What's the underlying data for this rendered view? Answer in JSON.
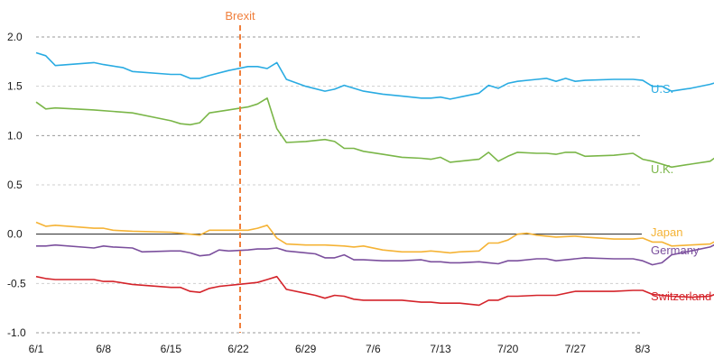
{
  "chart_data": {
    "type": "line",
    "title": "",
    "xlabel": "",
    "ylabel": "",
    "ylim": [
      -1.0,
      2.0
    ],
    "y_ticks": [
      2.0,
      1.5,
      1.0,
      0.5,
      0.0,
      -0.5,
      -1.0
    ],
    "y_tick_labels": [
      "2.0",
      "1.5",
      "1.0",
      "0.5",
      "0.0",
      "-0.5",
      "-1.0"
    ],
    "x_ticks": [
      "6/1",
      "6/8",
      "6/15",
      "6/22",
      "6/29",
      "7/6",
      "7/13",
      "7/20",
      "7/27",
      "8/3"
    ],
    "grid": "horizontal dashed",
    "legend": "labels at right end of each series",
    "annotation": {
      "label": "Brexit",
      "x": 21,
      "color": "#f07f3c"
    },
    "series": [
      {
        "name": "U.S.",
        "color": "#29abe2",
        "points": [
          [
            0,
            1.84
          ],
          [
            1,
            1.81
          ],
          [
            2,
            1.71
          ],
          [
            6,
            1.74
          ],
          [
            7,
            1.72
          ],
          [
            9,
            1.69
          ],
          [
            10,
            1.65
          ],
          [
            14,
            1.62
          ],
          [
            15,
            1.62
          ],
          [
            16,
            1.58
          ],
          [
            17,
            1.58
          ],
          [
            18,
            1.61
          ],
          [
            20,
            1.66
          ],
          [
            22,
            1.7
          ],
          [
            23,
            1.7
          ],
          [
            24,
            1.68
          ],
          [
            25,
            1.74
          ],
          [
            26,
            1.57
          ],
          [
            28,
            1.5
          ],
          [
            30,
            1.45
          ],
          [
            31,
            1.47
          ],
          [
            32,
            1.51
          ],
          [
            33,
            1.48
          ],
          [
            34,
            1.45
          ],
          [
            36,
            1.42
          ],
          [
            38,
            1.4
          ],
          [
            40,
            1.38
          ],
          [
            41,
            1.38
          ],
          [
            42,
            1.39
          ],
          [
            43,
            1.37
          ],
          [
            44,
            1.39
          ],
          [
            46,
            1.43
          ],
          [
            47,
            1.51
          ],
          [
            48,
            1.48
          ],
          [
            49,
            1.53
          ],
          [
            50,
            1.55
          ],
          [
            52,
            1.57
          ],
          [
            53,
            1.58
          ],
          [
            54,
            1.55
          ],
          [
            55,
            1.58
          ],
          [
            56,
            1.55
          ],
          [
            57,
            1.56
          ],
          [
            60,
            1.57
          ],
          [
            62,
            1.57
          ],
          [
            63,
            1.56
          ],
          [
            64,
            1.5
          ],
          [
            65,
            1.5
          ],
          [
            66,
            1.45
          ],
          [
            68,
            1.48
          ],
          [
            70,
            1.52
          ],
          [
            71,
            1.55
          ],
          [
            72,
            1.54
          ],
          [
            73,
            1.5
          ]
        ]
      },
      {
        "name": "U.K.",
        "color": "#7ab648",
        "points": [
          [
            0,
            1.34
          ],
          [
            1,
            1.27
          ],
          [
            2,
            1.28
          ],
          [
            6,
            1.26
          ],
          [
            10,
            1.23
          ],
          [
            14,
            1.15
          ],
          [
            15,
            1.12
          ],
          [
            16,
            1.11
          ],
          [
            17,
            1.13
          ],
          [
            18,
            1.23
          ],
          [
            20,
            1.26
          ],
          [
            22,
            1.29
          ],
          [
            23,
            1.32
          ],
          [
            24,
            1.38
          ],
          [
            25,
            1.07
          ],
          [
            26,
            0.93
          ],
          [
            28,
            0.94
          ],
          [
            30,
            0.96
          ],
          [
            31,
            0.94
          ],
          [
            32,
            0.87
          ],
          [
            33,
            0.87
          ],
          [
            34,
            0.84
          ],
          [
            36,
            0.81
          ],
          [
            38,
            0.78
          ],
          [
            40,
            0.77
          ],
          [
            41,
            0.76
          ],
          [
            42,
            0.78
          ],
          [
            43,
            0.73
          ],
          [
            44,
            0.74
          ],
          [
            46,
            0.76
          ],
          [
            47,
            0.83
          ],
          [
            48,
            0.74
          ],
          [
            49,
            0.79
          ],
          [
            50,
            0.83
          ],
          [
            52,
            0.82
          ],
          [
            53,
            0.82
          ],
          [
            54,
            0.81
          ],
          [
            55,
            0.83
          ],
          [
            56,
            0.83
          ],
          [
            57,
            0.79
          ],
          [
            60,
            0.8
          ],
          [
            62,
            0.82
          ],
          [
            63,
            0.76
          ],
          [
            64,
            0.74
          ],
          [
            65,
            0.71
          ],
          [
            66,
            0.68
          ],
          [
            68,
            0.71
          ],
          [
            70,
            0.74
          ],
          [
            71,
            0.81
          ],
          [
            72,
            0.8
          ],
          [
            73,
            0.64
          ]
        ]
      },
      {
        "name": "Japan",
        "color": "#f5b335",
        "points": [
          [
            0,
            0.12
          ],
          [
            1,
            0.08
          ],
          [
            2,
            0.09
          ],
          [
            6,
            0.06
          ],
          [
            7,
            0.06
          ],
          [
            8,
            0.04
          ],
          [
            10,
            0.03
          ],
          [
            14,
            0.02
          ],
          [
            15,
            0.01
          ],
          [
            16,
            0.0
          ],
          [
            17,
            -0.01
          ],
          [
            18,
            0.04
          ],
          [
            20,
            0.04
          ],
          [
            22,
            0.04
          ],
          [
            23,
            0.06
          ],
          [
            24,
            0.09
          ],
          [
            25,
            -0.04
          ],
          [
            26,
            -0.1
          ],
          [
            28,
            -0.11
          ],
          [
            30,
            -0.11
          ],
          [
            32,
            -0.12
          ],
          [
            33,
            -0.13
          ],
          [
            34,
            -0.12
          ],
          [
            36,
            -0.16
          ],
          [
            38,
            -0.18
          ],
          [
            40,
            -0.18
          ],
          [
            41,
            -0.17
          ],
          [
            42,
            -0.18
          ],
          [
            43,
            -0.19
          ],
          [
            44,
            -0.18
          ],
          [
            46,
            -0.17
          ],
          [
            47,
            -0.09
          ],
          [
            48,
            -0.09
          ],
          [
            49,
            -0.06
          ],
          [
            50,
            0.0
          ],
          [
            51,
            0.01
          ],
          [
            52,
            -0.01
          ],
          [
            54,
            -0.03
          ],
          [
            56,
            -0.02
          ],
          [
            57,
            -0.03
          ],
          [
            60,
            -0.05
          ],
          [
            62,
            -0.05
          ],
          [
            63,
            -0.04
          ],
          [
            64,
            -0.08
          ],
          [
            65,
            -0.08
          ],
          [
            66,
            -0.12
          ],
          [
            68,
            -0.11
          ],
          [
            70,
            -0.1
          ],
          [
            71,
            -0.05
          ],
          [
            72,
            -0.05
          ],
          [
            73,
            -0.08
          ]
        ]
      },
      {
        "name": "Germany",
        "color": "#7b4f9d",
        "points": [
          [
            0,
            -0.12
          ],
          [
            1,
            -0.12
          ],
          [
            2,
            -0.11
          ],
          [
            6,
            -0.14
          ],
          [
            7,
            -0.12
          ],
          [
            8,
            -0.13
          ],
          [
            10,
            -0.14
          ],
          [
            11,
            -0.18
          ],
          [
            14,
            -0.17
          ],
          [
            15,
            -0.17
          ],
          [
            16,
            -0.19
          ],
          [
            17,
            -0.22
          ],
          [
            18,
            -0.21
          ],
          [
            19,
            -0.16
          ],
          [
            20,
            -0.17
          ],
          [
            22,
            -0.16
          ],
          [
            23,
            -0.15
          ],
          [
            24,
            -0.15
          ],
          [
            25,
            -0.14
          ],
          [
            26,
            -0.17
          ],
          [
            28,
            -0.19
          ],
          [
            29,
            -0.2
          ],
          [
            30,
            -0.24
          ],
          [
            31,
            -0.24
          ],
          [
            32,
            -0.21
          ],
          [
            33,
            -0.26
          ],
          [
            34,
            -0.26
          ],
          [
            36,
            -0.27
          ],
          [
            38,
            -0.27
          ],
          [
            40,
            -0.26
          ],
          [
            41,
            -0.28
          ],
          [
            42,
            -0.28
          ],
          [
            43,
            -0.29
          ],
          [
            44,
            -0.29
          ],
          [
            46,
            -0.28
          ],
          [
            47,
            -0.29
          ],
          [
            48,
            -0.3
          ],
          [
            49,
            -0.27
          ],
          [
            50,
            -0.27
          ],
          [
            52,
            -0.25
          ],
          [
            53,
            -0.25
          ],
          [
            54,
            -0.27
          ],
          [
            56,
            -0.25
          ],
          [
            57,
            -0.24
          ],
          [
            60,
            -0.25
          ],
          [
            62,
            -0.25
          ],
          [
            63,
            -0.27
          ],
          [
            64,
            -0.31
          ],
          [
            65,
            -0.29
          ],
          [
            66,
            -0.21
          ],
          [
            68,
            -0.17
          ],
          [
            70,
            -0.13
          ],
          [
            71,
            -0.08
          ],
          [
            72,
            -0.1
          ],
          [
            73,
            -0.09
          ]
        ]
      },
      {
        "name": "Switzerland",
        "color": "#d4232a",
        "points": [
          [
            0,
            -0.43
          ],
          [
            1,
            -0.45
          ],
          [
            2,
            -0.46
          ],
          [
            6,
            -0.46
          ],
          [
            7,
            -0.48
          ],
          [
            8,
            -0.48
          ],
          [
            10,
            -0.51
          ],
          [
            14,
            -0.54
          ],
          [
            15,
            -0.54
          ],
          [
            16,
            -0.58
          ],
          [
            17,
            -0.59
          ],
          [
            18,
            -0.55
          ],
          [
            19,
            -0.53
          ],
          [
            20,
            -0.52
          ],
          [
            22,
            -0.5
          ],
          [
            23,
            -0.49
          ],
          [
            24,
            -0.46
          ],
          [
            25,
            -0.43
          ],
          [
            26,
            -0.56
          ],
          [
            28,
            -0.6
          ],
          [
            29,
            -0.62
          ],
          [
            30,
            -0.65
          ],
          [
            31,
            -0.62
          ],
          [
            32,
            -0.63
          ],
          [
            33,
            -0.66
          ],
          [
            34,
            -0.67
          ],
          [
            36,
            -0.67
          ],
          [
            38,
            -0.67
          ],
          [
            40,
            -0.69
          ],
          [
            41,
            -0.69
          ],
          [
            42,
            -0.7
          ],
          [
            43,
            -0.7
          ],
          [
            44,
            -0.7
          ],
          [
            46,
            -0.72
          ],
          [
            47,
            -0.67
          ],
          [
            48,
            -0.67
          ],
          [
            49,
            -0.63
          ],
          [
            50,
            -0.63
          ],
          [
            52,
            -0.62
          ],
          [
            53,
            -0.62
          ],
          [
            54,
            -0.62
          ],
          [
            56,
            -0.58
          ],
          [
            57,
            -0.58
          ],
          [
            60,
            -0.58
          ],
          [
            62,
            -0.57
          ],
          [
            63,
            -0.57
          ],
          [
            64,
            -0.61
          ],
          [
            65,
            -0.62
          ],
          [
            66,
            -0.63
          ],
          [
            68,
            -0.64
          ],
          [
            70,
            -0.63
          ],
          [
            71,
            -0.59
          ],
          [
            72,
            -0.59
          ],
          [
            73,
            -0.61
          ]
        ]
      }
    ]
  }
}
